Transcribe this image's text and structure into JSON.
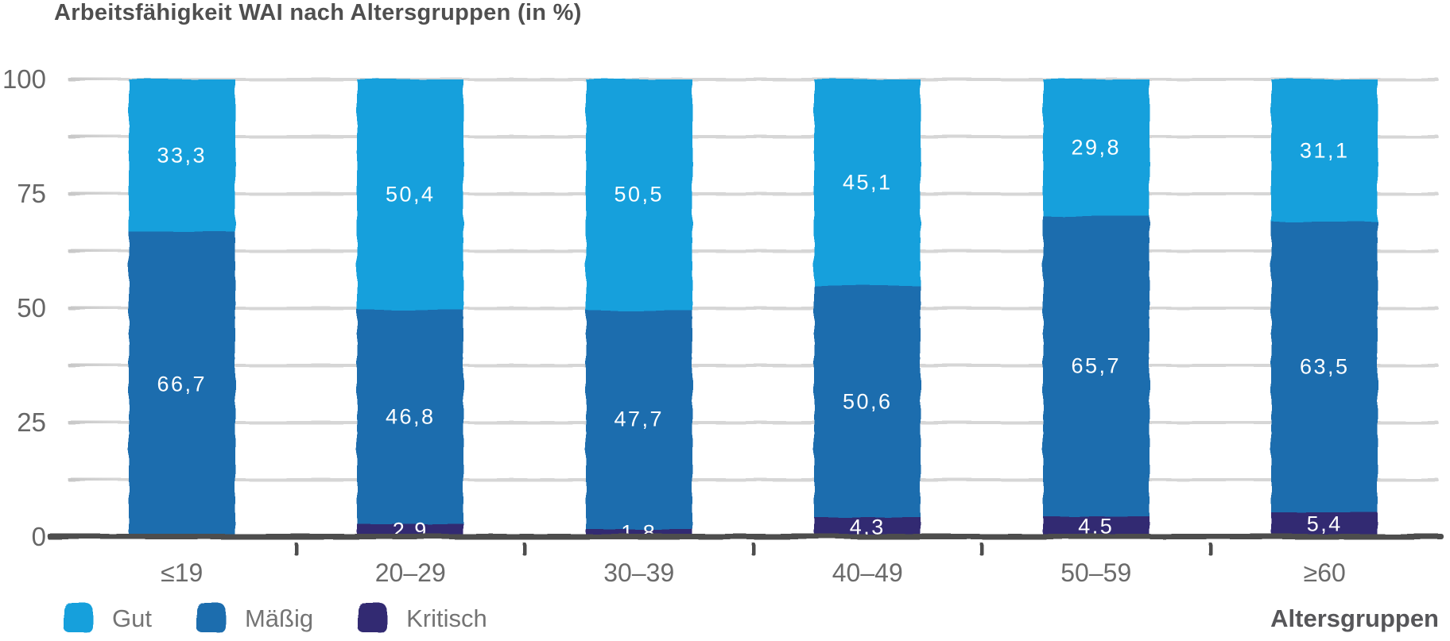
{
  "legend": {
    "items": [
      {
        "key": "gut",
        "label": "Gut",
        "color": "#12a0dc"
      },
      {
        "key": "maessig",
        "label": "Mäßig",
        "color": "#1c6dae"
      },
      {
        "key": "kritisch",
        "label": "Kritisch",
        "color": "#332c72"
      }
    ]
  },
  "colors": {
    "axis": "#4d4d4d",
    "grid": "#d6d6d6",
    "title": "#4f4f4f",
    "value_labels": "#ffffff"
  },
  "chart_data": {
    "type": "bar",
    "stacked": true,
    "title": "Arbeitsfähigkeit WAI nach Altersgruppen (in %)",
    "xlabel": "Altersgruppen",
    "ylabel": "",
    "categories": [
      "≤19",
      "20–29",
      "30–39",
      "40–49",
      "50–59",
      "≥60"
    ],
    "series": [
      {
        "name": "Kritisch",
        "key": "kritisch",
        "color": "#332c72",
        "values": [
          0,
          2.9,
          1.8,
          4.3,
          4.5,
          5.4
        ]
      },
      {
        "name": "Mäßig",
        "key": "maessig",
        "color": "#1c6dae",
        "values": [
          66.7,
          46.8,
          47.7,
          50.6,
          65.7,
          63.5
        ]
      },
      {
        "name": "Gut",
        "key": "gut",
        "color": "#12a0dc",
        "values": [
          33.3,
          50.4,
          50.5,
          45.1,
          29.8,
          31.1
        ]
      }
    ],
    "series_order": "bottom-to-top",
    "ylim": [
      0,
      100
    ],
    "y_ticks": [
      "100",
      "75",
      "50",
      "25",
      "0"
    ],
    "gridline_step": 12.5,
    "grid": true,
    "legend_position": "bottom-left",
    "decimal_separator": ","
  }
}
